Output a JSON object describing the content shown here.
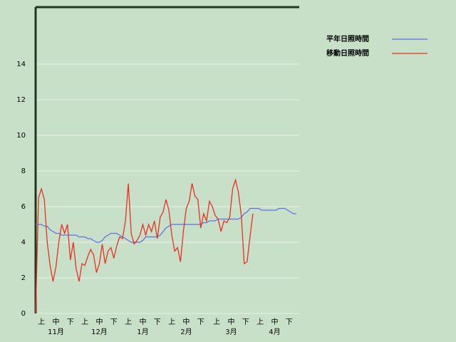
{
  "chart_data": {
    "type": "line",
    "series": [
      {
        "name": "平年日照時間",
        "color": "#6070e8",
        "values": [
          5.0,
          5.0,
          5.0,
          4.9,
          4.9,
          4.7,
          4.6,
          4.5,
          4.5,
          4.4,
          4.4,
          4.4,
          4.4,
          4.4,
          4.4,
          4.3,
          4.3,
          4.3,
          4.2,
          4.2,
          4.1,
          4.0,
          4.0,
          4.1,
          4.3,
          4.4,
          4.5,
          4.5,
          4.5,
          4.4,
          4.3,
          4.2,
          4.1,
          4.0,
          4.0,
          4.0,
          4.0,
          4.1,
          4.3,
          4.3,
          4.3,
          4.3,
          4.3,
          4.4,
          4.6,
          4.8,
          4.9,
          5.0,
          5.0,
          5.0,
          5.0,
          5.0,
          5.0,
          5.0,
          5.0,
          5.0,
          5.0,
          5.0,
          5.1,
          5.1,
          5.2,
          5.2,
          5.2,
          5.3,
          5.3,
          5.3,
          5.3,
          5.3,
          5.3,
          5.3,
          5.3,
          5.4,
          5.6,
          5.7,
          5.9,
          5.9,
          5.9,
          5.9,
          5.8,
          5.8,
          5.8,
          5.8,
          5.8,
          5.8,
          5.9,
          5.9,
          5.9,
          5.8,
          5.7,
          5.6,
          5.6
        ]
      },
      {
        "name": "移動日照時間",
        "color": "#e83020",
        "values": [
          0,
          6.5,
          7.0,
          6.4,
          4.0,
          2.7,
          1.8,
          2.6,
          4.0,
          5.0,
          4.5,
          5.0,
          3.0,
          4.0,
          2.5,
          1.8,
          2.8,
          2.7,
          3.2,
          3.6,
          3.3,
          2.3,
          2.8,
          3.9,
          2.8,
          3.5,
          3.7,
          3.1,
          3.8,
          4.3,
          4.2,
          5.2,
          7.3,
          4.5,
          3.9,
          4.1,
          4.4,
          5.0,
          4.4,
          5.0,
          4.6,
          5.2,
          4.2,
          5.4,
          5.7,
          6.4,
          5.8,
          4.4,
          3.5,
          3.7,
          2.9,
          4.6,
          5.9,
          6.3,
          7.3,
          6.6,
          6.4,
          4.8,
          5.6,
          5.2,
          6.3,
          6.0,
          5.5,
          5.3,
          4.6,
          5.2,
          5.1,
          5.4,
          7.0,
          7.5,
          6.8,
          5.5,
          2.8,
          2.9,
          4.3,
          5.6,
          null,
          null,
          null,
          null,
          null,
          null,
          null,
          null,
          null,
          null,
          null,
          null,
          null,
          null,
          null
        ]
      }
    ],
    "x": [
      0,
      2,
      4,
      6,
      8,
      10,
      12,
      14,
      16,
      18,
      20,
      22,
      24,
      26,
      28,
      30,
      32,
      34,
      36,
      38,
      40,
      42,
      44,
      46,
      48,
      50,
      52,
      54,
      56,
      58,
      60,
      62,
      64,
      66,
      68,
      70,
      72,
      74,
      76,
      78,
      80,
      82,
      84,
      86,
      88,
      90,
      92,
      94,
      96,
      98,
      100,
      102,
      104,
      106,
      108,
      110,
      112,
      114,
      116,
      118,
      120,
      122,
      124,
      126,
      128,
      130,
      132,
      134,
      136,
      138,
      140,
      142,
      144,
      146,
      148,
      150,
      152,
      154,
      156,
      158,
      160,
      162,
      164,
      166,
      168,
      170,
      172,
      174,
      176,
      178,
      180
    ],
    "xlim": [
      0,
      182
    ],
    "xticks": [
      {
        "value": 4,
        "label": "上"
      },
      {
        "value": 14,
        "label": "中"
      },
      {
        "value": 24,
        "label": "下"
      },
      {
        "value": 34,
        "label": "上"
      },
      {
        "value": 44,
        "label": "中"
      },
      {
        "value": 54,
        "label": "下"
      },
      {
        "value": 64,
        "label": "上"
      },
      {
        "value": 74,
        "label": "中"
      },
      {
        "value": 84,
        "label": "下"
      },
      {
        "value": 94,
        "label": "上"
      },
      {
        "value": 104,
        "label": "中"
      },
      {
        "value": 114,
        "label": "下"
      },
      {
        "value": 125,
        "label": "上"
      },
      {
        "value": 135,
        "label": "中"
      },
      {
        "value": 145,
        "label": "下"
      },
      {
        "value": 155,
        "label": "上"
      },
      {
        "value": 165,
        "label": "中"
      },
      {
        "value": 175,
        "label": "下"
      }
    ],
    "month_labels": [
      {
        "value": 14,
        "label": "11月"
      },
      {
        "value": 44,
        "label": "12月"
      },
      {
        "value": 74,
        "label": "1月"
      },
      {
        "value": 104,
        "label": "2月"
      },
      {
        "value": 135,
        "label": "3月"
      },
      {
        "value": 165,
        "label": "4月"
      }
    ],
    "ylim": [
      0,
      17.2
    ],
    "yticks": [
      0,
      2,
      4,
      6,
      8,
      10,
      12,
      14
    ],
    "grid": true
  }
}
